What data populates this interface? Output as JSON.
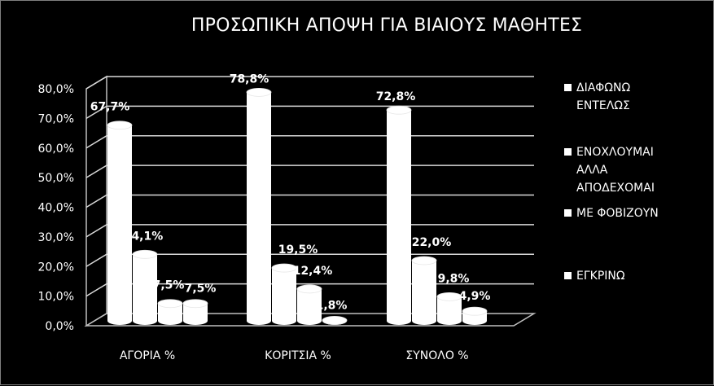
{
  "chart_data": {
    "type": "bar",
    "style": "3d-cylinder",
    "title": "ΠΡΟΣΩΠΙΚΗ ΑΠΟΨΗ ΓΙΑ ΒΙΑΙΟΥΣ ΜΑΘΗΤΕΣ",
    "categories": [
      "ΑΓΟΡΙΑ  %",
      "ΚΟΡΙΤΣΙΑ %",
      "ΣΥΝΟΛΟ %"
    ],
    "series": [
      {
        "name": "ΔΙΑΦΩΝΩ ΕΝΤΕΛΩΣ",
        "values": [
          67.7,
          78.8,
          72.8
        ],
        "labels": [
          "67,7%",
          "78,8%",
          "72,8%"
        ]
      },
      {
        "name": "ΕΝΟΧΛΟΥΜΑΙ ΑΛΛΑ ΑΠΟΔΕΧΟΜΑΙ",
        "values": [
          24.1,
          19.5,
          22.0
        ],
        "labels": [
          "24,1%",
          "19,5%",
          "22,0%"
        ]
      },
      {
        "name": "ΜΕ ΦΟΒΙΖΟΥΝ",
        "values": [
          7.5,
          12.4,
          9.8
        ],
        "labels": [
          "7,5%",
          "12,4%",
          "9,8%"
        ]
      },
      {
        "name": "ΕΓΚΡΙΝΩ",
        "values": [
          7.5,
          1.8,
          4.9
        ],
        "labels": [
          "7,5%",
          "1,8%",
          "4,9%"
        ]
      }
    ],
    "ylim": [
      0,
      80
    ],
    "yticks": [
      "0,0%",
      "10,0%",
      "20,0%",
      "30,0%",
      "40,0%",
      "50,0%",
      "60,0%",
      "70,0%",
      "80,0%"
    ],
    "grid": true,
    "legend_position": "right",
    "colors": {
      "background": "#000000",
      "bars": "#ffffff",
      "text": "#ffffff",
      "grid": "#d9d9d9"
    }
  },
  "legend": [
    {
      "text": "ΔΙΑΦΩΝΩ\nΕΝΤΕΛΩΣ"
    },
    {
      "text": "ΕΝΟΧΛΟΥΜΑΙ\nΑΛΛΑ\nΑΠΟΔΕΧΟΜΑΙ"
    },
    {
      "text": "ΜΕ ΦΟΒΙΖΟΥΝ"
    },
    {
      "text": "ΕΓΚΡΙΝΩ"
    }
  ]
}
